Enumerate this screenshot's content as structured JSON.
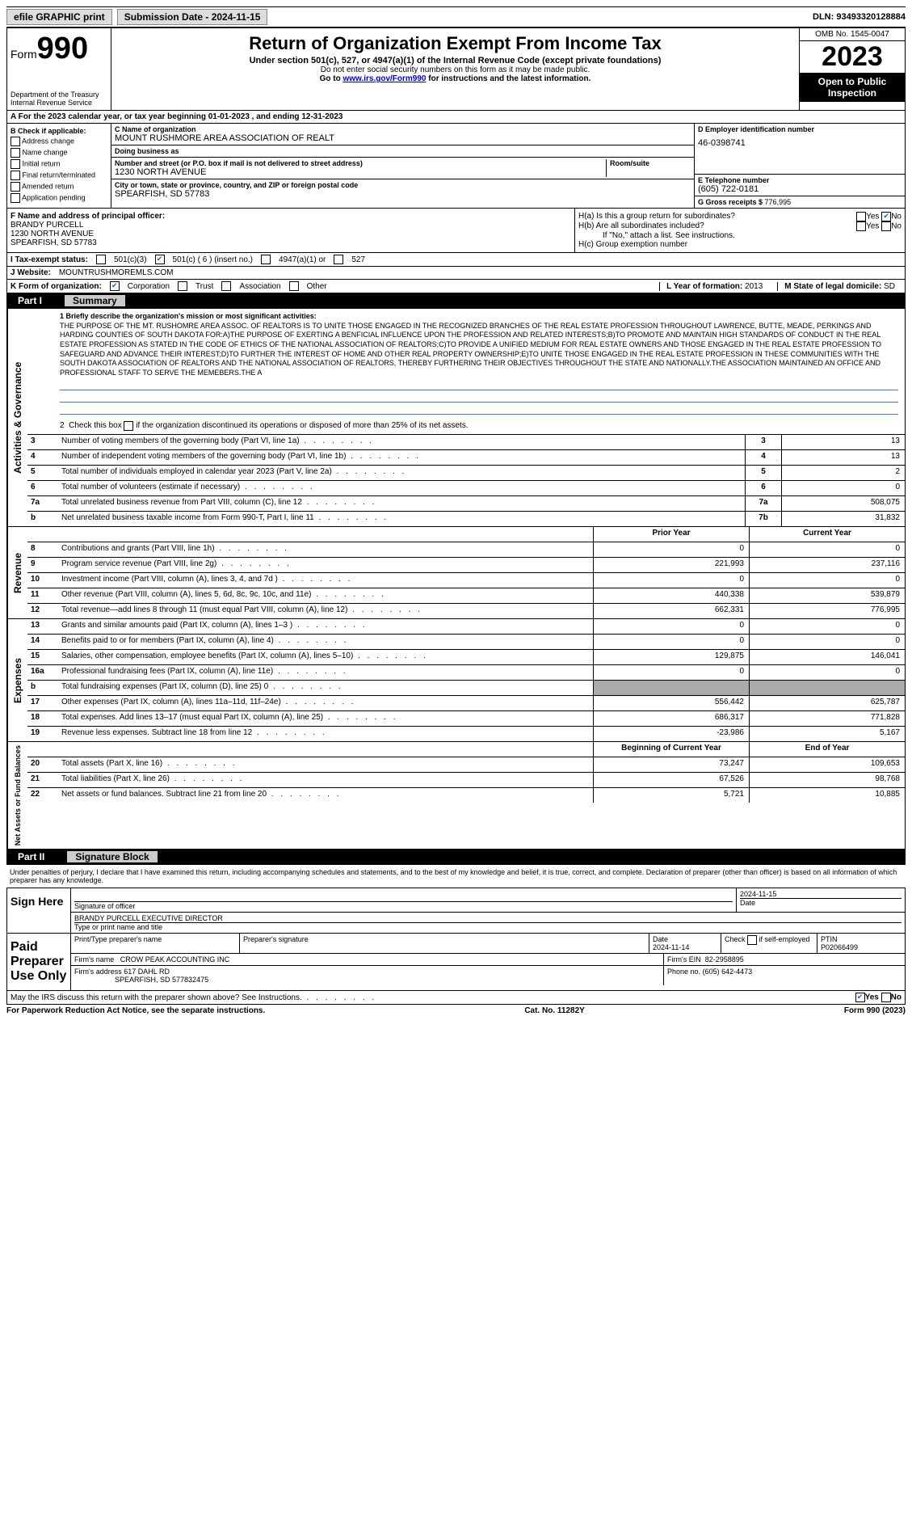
{
  "topbar": {
    "efile": "efile GRAPHIC print",
    "submission_label": "Submission Date - 2024-11-15",
    "dln": "DLN: 93493320128884"
  },
  "header": {
    "form_prefix": "Form",
    "form_number": "990",
    "title": "Return of Organization Exempt From Income Tax",
    "subtitle": "Under section 501(c), 527, or 4947(a)(1) of the Internal Revenue Code (except private foundations)",
    "note1": "Do not enter social security numbers on this form as it may be made public.",
    "note2_prefix": "Go to ",
    "note2_link": "www.irs.gov/Form990",
    "note2_suffix": " for instructions and the latest information.",
    "dept": "Department of the Treasury\nInternal Revenue Service",
    "omb": "OMB No. 1545-0047",
    "year": "2023",
    "open_public": "Open to Public Inspection"
  },
  "section_a": "A For the 2023 calendar year, or tax year beginning 01-01-2023   , and ending 12-31-2023",
  "col_b": {
    "title": "B Check if applicable:",
    "opts": [
      "Address change",
      "Name change",
      "Initial return",
      "Final return/terminated",
      "Amended return",
      "Application pending"
    ]
  },
  "org": {
    "c_label": "C Name of organization",
    "name": "MOUNT RUSHMORE AREA ASSOCIATION OF REALT",
    "dba_label": "Doing business as",
    "dba": "",
    "addr_label": "Number and street (or P.O. box if mail is not delivered to street address)",
    "addr": "1230 NORTH AVENUE",
    "room_label": "Room/suite",
    "city_label": "City or town, state or province, country, and ZIP or foreign postal code",
    "city": "SPEARFISH, SD  57783"
  },
  "col_d": {
    "ein_label": "D Employer identification number",
    "ein": "46-0398741",
    "phone_label": "E Telephone number",
    "phone": "(605) 722-0181",
    "gross_label": "G Gross receipts $ ",
    "gross": "776,995"
  },
  "officer": {
    "f_label": "F  Name and address of principal officer:",
    "name": "BRANDY PURCELL",
    "addr1": "1230 NORTH AVENUE",
    "addr2": "SPEARFISH, SD  57783"
  },
  "h_block": {
    "ha": "H(a)  Is this a group return for subordinates?",
    "hb": "H(b)  Are all subordinates included?",
    "hb_note": "If \"No,\" attach a list. See instructions.",
    "hc": "H(c)  Group exemption number",
    "yes": "Yes",
    "no": "No"
  },
  "tax_status": {
    "label": "I  Tax-exempt status:",
    "opt1": "501(c)(3)",
    "opt2": "501(c) ( 6 ) (insert no.)",
    "opt3": "4947(a)(1) or",
    "opt4": "527"
  },
  "website": {
    "label": "J  Website:",
    "value": "MOUNTRUSHMOREMLS.COM"
  },
  "form_org": {
    "label": "K Form of organization:",
    "opts": [
      "Corporation",
      "Trust",
      "Association",
      "Other"
    ]
  },
  "l_year": {
    "label": "L Year of formation: ",
    "value": "2013"
  },
  "m_state": {
    "label": "M State of legal domicile: ",
    "value": "SD"
  },
  "part1": {
    "num": "Part I",
    "title": "Summary"
  },
  "mission": {
    "label": "1  Briefly describe the organization's mission or most significant activities:",
    "text": "THE PURPOSE OF THE MT. RUSHOMRE AREA ASSOC. OF REALTORS IS TO UNITE THOSE ENGAGED IN THE RECOGNIZED BRANCHES OF THE REAL ESTATE PROFESSION THROUGHOUT LAWRENCE, BUTTE, MEADE, PERKINGS AND HARDING COUNTIES OF SOUTH DAKOTA FOR:A)THE PURPOSE OF EXERTING A BENFICIAL INFLUENCE UPON THE PROFESSION AND RELATED INTERESTS;B)TO PROMOTE AND MAINTAIN HIGH STANDARDS OF CONDUCT IN THE REAL ESTATE PROFESSION AS STATED IN THE CODE OF ETHICS OF THE NATIONAL ASSOCIATION OF REALTORS;C)TO PROVIDE A UNIFIED MEDIUM FOR REAL ESTATE OWNERS AND THOSE ENGAGED IN THE REAL ESTATE PROFESSION TO SAFEGUARD AND ADVANCE THEIR INTEREST;D)TO FURTHER THE INTEREST OF HOME AND OTHER REAL PROPERTY OWNERSHIP;E)TO UNITE THOSE ENGAGED IN THE REAL ESTATE PROFESSION IN THESE COMMUNITIES WITH THE SOUTH DAKOTA ASSOCIATION OF REALTORS AND THE NATIONAL ASSOCIATION OF REALTORS, THEREBY FURTHERING THEIR OBJECTIVES THROUGHOUT THE STATE AND NATIONALLY.THE ASSOCIATION MAINTAINED AN OFFICE AND PROFESSIONAL STAFF TO SERVE THE MEMEBERS.THE A"
  },
  "line2": "2  Check this box      if the organization discontinued its operations or disposed of more than 25% of its net assets.",
  "governance_rows": [
    {
      "n": "3",
      "d": "Number of voting members of the governing body (Part VI, line 1a)",
      "box": "3",
      "v": "13"
    },
    {
      "n": "4",
      "d": "Number of independent voting members of the governing body (Part VI, line 1b)",
      "box": "4",
      "v": "13"
    },
    {
      "n": "5",
      "d": "Total number of individuals employed in calendar year 2023 (Part V, line 2a)",
      "box": "5",
      "v": "2"
    },
    {
      "n": "6",
      "d": "Total number of volunteers (estimate if necessary)",
      "box": "6",
      "v": "0"
    },
    {
      "n": "7a",
      "d": "Total unrelated business revenue from Part VIII, column (C), line 12",
      "box": "7a",
      "v": "508,075"
    },
    {
      "n": "b",
      "d": "Net unrelated business taxable income from Form 990-T, Part I, line 11",
      "box": "7b",
      "v": "31,832"
    }
  ],
  "rev_header": {
    "prior": "Prior Year",
    "current": "Current Year"
  },
  "revenue_rows": [
    {
      "n": "8",
      "d": "Contributions and grants (Part VIII, line 1h)",
      "p": "0",
      "c": "0"
    },
    {
      "n": "9",
      "d": "Program service revenue (Part VIII, line 2g)",
      "p": "221,993",
      "c": "237,116"
    },
    {
      "n": "10",
      "d": "Investment income (Part VIII, column (A), lines 3, 4, and 7d )",
      "p": "0",
      "c": "0"
    },
    {
      "n": "11",
      "d": "Other revenue (Part VIII, column (A), lines 5, 6d, 8c, 9c, 10c, and 11e)",
      "p": "440,338",
      "c": "539,879"
    },
    {
      "n": "12",
      "d": "Total revenue—add lines 8 through 11 (must equal Part VIII, column (A), line 12)",
      "p": "662,331",
      "c": "776,995"
    }
  ],
  "expense_rows": [
    {
      "n": "13",
      "d": "Grants and similar amounts paid (Part IX, column (A), lines 1–3 )",
      "p": "0",
      "c": "0"
    },
    {
      "n": "14",
      "d": "Benefits paid to or for members (Part IX, column (A), line 4)",
      "p": "0",
      "c": "0"
    },
    {
      "n": "15",
      "d": "Salaries, other compensation, employee benefits (Part IX, column (A), lines 5–10)",
      "p": "129,875",
      "c": "146,041"
    },
    {
      "n": "16a",
      "d": "Professional fundraising fees (Part IX, column (A), line 11e)",
      "p": "0",
      "c": "0"
    },
    {
      "n": "b",
      "d": "Total fundraising expenses (Part IX, column (D), line 25) 0",
      "p": "",
      "c": "",
      "shaded": true
    },
    {
      "n": "17",
      "d": "Other expenses (Part IX, column (A), lines 11a–11d, 11f–24e)",
      "p": "556,442",
      "c": "625,787"
    },
    {
      "n": "18",
      "d": "Total expenses. Add lines 13–17 (must equal Part IX, column (A), line 25)",
      "p": "686,317",
      "c": "771,828"
    },
    {
      "n": "19",
      "d": "Revenue less expenses. Subtract line 18 from line 12",
      "p": "-23,986",
      "c": "5,167"
    }
  ],
  "net_header": {
    "begin": "Beginning of Current Year",
    "end": "End of Year"
  },
  "net_rows": [
    {
      "n": "20",
      "d": "Total assets (Part X, line 16)",
      "p": "73,247",
      "c": "109,653"
    },
    {
      "n": "21",
      "d": "Total liabilities (Part X, line 26)",
      "p": "67,526",
      "c": "98,768"
    },
    {
      "n": "22",
      "d": "Net assets or fund balances. Subtract line 21 from line 20",
      "p": "5,721",
      "c": "10,885"
    }
  ],
  "side_labels": {
    "gov": "Activities & Governance",
    "rev": "Revenue",
    "exp": "Expenses",
    "net": "Net Assets or Fund Balances"
  },
  "part2": {
    "num": "Part II",
    "title": "Signature Block"
  },
  "sig_decl": "Under penalties of perjury, I declare that I have examined this return, including accompanying schedules and statements, and to the best of my knowledge and belief, it is true, correct, and complete. Declaration of preparer (other than officer) is based on all information of which preparer has any knowledge.",
  "sign_here": {
    "label": "Sign Here",
    "sig_label": "Signature of officer",
    "name": "BRANDY PURCELL  EXECUTIVE DIRECTOR",
    "name_label": "Type or print name and title",
    "date": "2024-11-15",
    "date_label": "Date"
  },
  "preparer": {
    "label": "Paid Preparer Use Only",
    "name_label": "Print/Type preparer's name",
    "sig_label": "Preparer's signature",
    "date_label": "Date",
    "date": "2024-11-14",
    "check_label": "Check        if self-employed",
    "ptin_label": "PTIN",
    "ptin": "P02066499",
    "firm_name_label": "Firm's name",
    "firm_name": "CROW PEAK ACCOUNTING INC",
    "firm_ein_label": "Firm's EIN",
    "firm_ein": "82-2958895",
    "firm_addr_label": "Firm's address",
    "firm_addr1": "617 DAHL RD",
    "firm_addr2": "SPEARFISH, SD  577832475",
    "phone_label": "Phone no.",
    "phone": "(605) 642-4473"
  },
  "discuss": "May the IRS discuss this return with the preparer shown above? See Instructions.",
  "footer": {
    "left": "For Paperwork Reduction Act Notice, see the separate instructions.",
    "mid": "Cat. No. 11282Y",
    "right": "Form 990 (2023)"
  }
}
